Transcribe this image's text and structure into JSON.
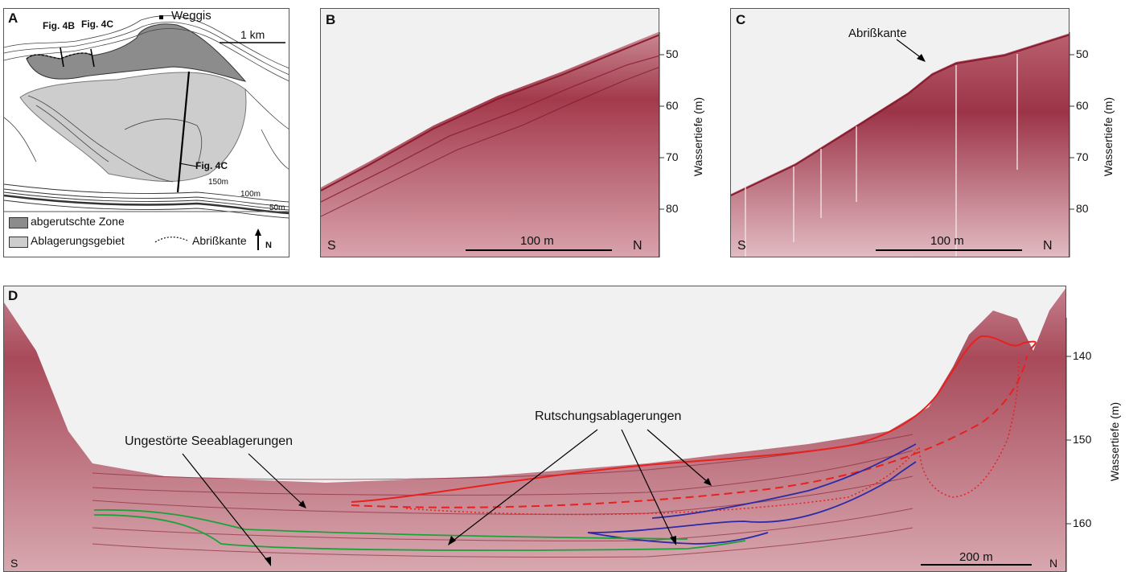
{
  "panelA": {
    "label": "A",
    "fig4b": "Fig. 4B",
    "fig4c_top": "Fig. 4C",
    "fig4c_mid": "Fig. 4C",
    "town": "Weggis",
    "scale": "1 km",
    "depth150": "150m",
    "depth100": "100m",
    "depth50": "50m",
    "legend_slid": "abgerutschte Zone",
    "legend_deposit": "Ablagerungsgebiet",
    "legend_scarp": "Abrißkante",
    "north": "N",
    "colors": {
      "slid": "#8c8c8c",
      "deposit": "#cdcdcd"
    }
  },
  "panelB": {
    "label": "B",
    "south": "S",
    "north": "N",
    "scale": "100 m",
    "ticks": [
      "50",
      "60",
      "70",
      "80"
    ],
    "axis_label": "Wassertiefe (m)"
  },
  "panelC": {
    "label": "C",
    "south": "S",
    "north": "N",
    "scale": "100 m",
    "annotation": "Abrißkante",
    "ticks": [
      "50",
      "60",
      "70",
      "80"
    ],
    "axis_label": "Wassertiefe (m)"
  },
  "panelD": {
    "label": "D",
    "south": "S",
    "north": "N",
    "scale": "200 m",
    "annotation_slide": "Rutschungsablagerungen",
    "annotation_lake": "Ungestörte Seeablagerungen",
    "ticks": [
      "140",
      "150",
      "160"
    ],
    "axis_label": "Wassertiefe (m)",
    "colors": {
      "slide": "#e8201e",
      "green": "#19a33a",
      "blue": "#2a2aa8",
      "seismic": "#9a2a3a"
    }
  }
}
